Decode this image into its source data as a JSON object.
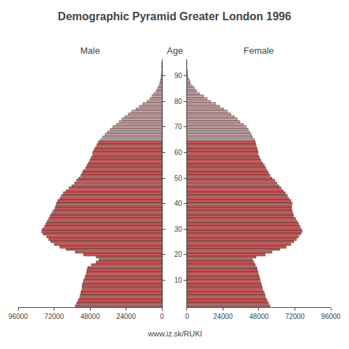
{
  "chart_data": {
    "type": "bar",
    "orientation": "horizontal",
    "title": "Demographic Pyramid Greater London 1996",
    "ylabel": "Age",
    "annotations": [
      "www.iz.sk/RUKI"
    ],
    "grid": false,
    "categories": [
      0,
      1,
      2,
      3,
      4,
      5,
      6,
      7,
      8,
      9,
      10,
      11,
      12,
      13,
      14,
      15,
      16,
      17,
      18,
      19,
      20,
      21,
      22,
      23,
      24,
      25,
      26,
      27,
      28,
      29,
      30,
      31,
      32,
      33,
      34,
      35,
      36,
      37,
      38,
      39,
      40,
      41,
      42,
      43,
      44,
      45,
      46,
      47,
      48,
      49,
      50,
      51,
      52,
      53,
      54,
      55,
      56,
      57,
      58,
      59,
      60,
      61,
      62,
      63,
      64,
      65,
      66,
      67,
      68,
      69,
      70,
      71,
      72,
      73,
      74,
      75,
      76,
      77,
      78,
      79,
      80,
      81,
      82,
      83,
      84,
      85,
      86,
      87,
      88,
      89,
      90,
      91,
      92,
      93,
      94,
      95
    ],
    "ylim": [
      -0.5,
      96.5
    ],
    "yticks": [
      10,
      20,
      30,
      40,
      50,
      60,
      70,
      80,
      90
    ],
    "series": [
      {
        "name": "Male",
        "xlim": [
          96000,
          0
        ],
        "xticks": [
          96000,
          72000,
          48000,
          24000,
          0
        ],
        "values": [
          58000,
          57000,
          56000,
          55000,
          54500,
          54000,
          53500,
          53000,
          53000,
          52500,
          52000,
          51500,
          51000,
          50500,
          50000,
          49500,
          47000,
          44000,
          42000,
          44000,
          52000,
          58000,
          64000,
          68000,
          72000,
          74000,
          75500,
          77000,
          79000,
          80000,
          79500,
          78500,
          77500,
          76500,
          75500,
          74500,
          73500,
          72500,
          71500,
          71000,
          70500,
          69500,
          68000,
          67000,
          65500,
          64000,
          62000,
          60000,
          58500,
          57000,
          55500,
          54000,
          53000,
          52000,
          51000,
          50000,
          49000,
          48000,
          47000,
          46000,
          46000,
          45000,
          44500,
          43500,
          42500,
          41000,
          39500,
          38000,
          36500,
          34500,
          32500,
          30500,
          28500,
          26500,
          24500,
          22500,
          20000,
          17500,
          15000,
          12500,
          10000,
          8000,
          6500,
          5000,
          3800,
          2800,
          2000,
          1400,
          950,
          600,
          380,
          230,
          140,
          80,
          45,
          25
        ],
        "colors": [
          "#cd5555",
          "#cd5555",
          "#cd5555",
          "#cd5555",
          "#cd5555",
          "#cd5555",
          "#cd5555",
          "#cd5555",
          "#cd5555",
          "#cd5555",
          "#cd5555",
          "#cd5555",
          "#cd5555",
          "#cd5555",
          "#cd5555",
          "#cd5555",
          "#cd5555",
          "#cd5555",
          "#cd5555",
          "#cd5555",
          "#cd5555",
          "#cd5555",
          "#cd5555",
          "#cd5555",
          "#cd5555",
          "#cd5555",
          "#cd5555",
          "#cd5555",
          "#cd5555",
          "#cd5555",
          "#cd5555",
          "#cd5555",
          "#cd5555",
          "#cd5555",
          "#cd5555",
          "#cd5555",
          "#cd5555",
          "#cd5555",
          "#cd5555",
          "#cd5555",
          "#cd5555",
          "#cd5555",
          "#cd5555",
          "#cd5555",
          "#cd5555",
          "#cd5555",
          "#cd5555",
          "#cd5555",
          "#cd5555",
          "#cd5555",
          "#cd5555",
          "#cd5555",
          "#cd5555",
          "#cd5555",
          "#cd5555",
          "#cd5555",
          "#cd5555",
          "#cd5555",
          "#cd5555",
          "#cd5555",
          "#cd5555",
          "#cd5555",
          "#cd5555",
          "#cd5555",
          "#cd5555",
          "#c8a0a0",
          "#c8a0a0",
          "#c8a0a0",
          "#c8a0a0",
          "#c8a0a0",
          "#c8a0a0",
          "#c8a0a0",
          "#c8a0a0",
          "#c8a0a0",
          "#c8a0a0",
          "#c8a0a0",
          "#c8a0a0",
          "#c8a0a0",
          "#c8a0a0",
          "#c8a0a0",
          "#c8a0a0",
          "#c8a0a0",
          "#c8a0a0",
          "#c8a0a0",
          "#c8a0a0",
          "#c8a0a0",
          "#c8a0a0",
          "#c8a0a0",
          "#c8a0a0",
          "#c8a0a0",
          "#c8a0a0",
          "#c8a0a0",
          "#c8a0a0",
          "#c8a0a0",
          "#c8a0a0",
          "#c8a0a0"
        ]
      },
      {
        "name": "Female",
        "xlim": [
          0,
          96000
        ],
        "xticks": [
          0,
          24000,
          48000,
          72000,
          96000
        ],
        "values": [
          55500,
          54500,
          53500,
          52500,
          52000,
          51500,
          51000,
          50500,
          50000,
          49500,
          49000,
          48500,
          48000,
          47500,
          47000,
          46500,
          45500,
          44500,
          44000,
          46000,
          52000,
          57000,
          62000,
          66000,
          69500,
          71500,
          73000,
          74500,
          76000,
          77000,
          76500,
          75500,
          74500,
          73500,
          72500,
          71500,
          71000,
          70500,
          70000,
          70000,
          70500,
          69500,
          68000,
          67000,
          65500,
          64500,
          63000,
          61500,
          60000,
          58500,
          57000,
          55500,
          54500,
          53500,
          52500,
          51500,
          50500,
          49500,
          48500,
          47500,
          47500,
          47000,
          46500,
          46000,
          45500,
          45000,
          44000,
          43000,
          42000,
          41000,
          39500,
          37500,
          35500,
          33500,
          31500,
          29500,
          27000,
          24500,
          22000,
          19000,
          16000,
          13500,
          11000,
          8500,
          6500,
          5000,
          3600,
          2500,
          1700,
          1100,
          680,
          420,
          250,
          150,
          90,
          50
        ],
        "colors": [
          "#cd5555",
          "#cd5555",
          "#cd5555",
          "#cd5555",
          "#cd5555",
          "#cd5555",
          "#cd5555",
          "#cd5555",
          "#cd5555",
          "#cd5555",
          "#cd5555",
          "#cd5555",
          "#cd5555",
          "#cd5555",
          "#cd5555",
          "#cd5555",
          "#cd5555",
          "#cd5555",
          "#cd5555",
          "#cd5555",
          "#cd5555",
          "#cd5555",
          "#cd5555",
          "#cd5555",
          "#cd5555",
          "#cd5555",
          "#cd5555",
          "#cd5555",
          "#cd5555",
          "#cd5555",
          "#cd5555",
          "#cd5555",
          "#cd5555",
          "#cd5555",
          "#cd5555",
          "#cd5555",
          "#cd5555",
          "#cd5555",
          "#cd5555",
          "#cd5555",
          "#cd5555",
          "#cd5555",
          "#cd5555",
          "#cd5555",
          "#cd5555",
          "#cd5555",
          "#cd5555",
          "#cd5555",
          "#cd5555",
          "#cd5555",
          "#cd5555",
          "#cd5555",
          "#cd5555",
          "#cd5555",
          "#cd5555",
          "#cd5555",
          "#cd5555",
          "#cd5555",
          "#cd5555",
          "#cd5555",
          "#cd5555",
          "#cd5555",
          "#cd5555",
          "#cd5555",
          "#cd5555",
          "#c8a0a0",
          "#c8a0a0",
          "#c8a0a0",
          "#c8a0a0",
          "#c8a0a0",
          "#c8a0a0",
          "#c8a0a0",
          "#c8a0a0",
          "#c8a0a0",
          "#c8a0a0",
          "#c8a0a0",
          "#c8a0a0",
          "#c8a0a0",
          "#c8a0a0",
          "#c8a0a0",
          "#c8a0a0",
          "#c8a0a0",
          "#c8a0a0",
          "#c8a0a0",
          "#c8a0a0",
          "#c8a0a0",
          "#c8a0a0",
          "#c8a0a0",
          "#c8a0a0",
          "#c8a0a0",
          "#c8a0a0",
          "#c8a0a0",
          "#c8a0a0",
          "#c8a0a0",
          "#c8a0a0",
          "#c8a0a0"
        ]
      }
    ]
  }
}
